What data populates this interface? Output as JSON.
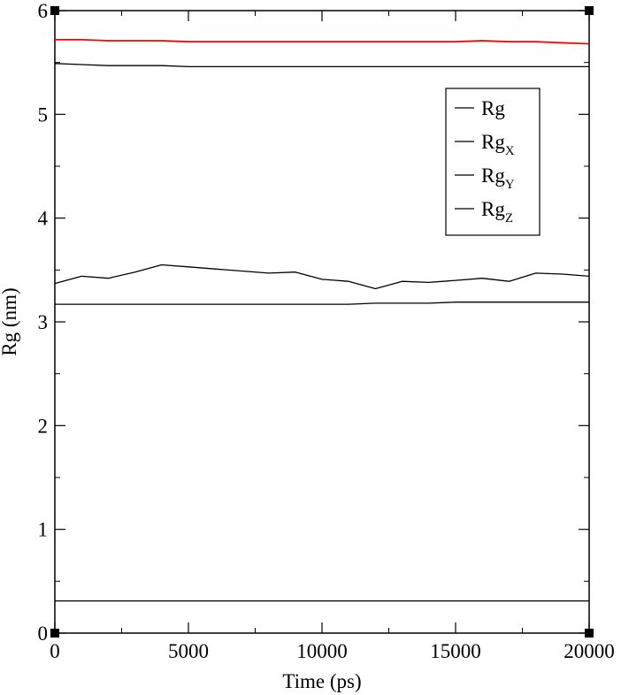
{
  "chart_data": {
    "type": "line",
    "title": "",
    "xlabel": "Time (ps)",
    "ylabel": "Rg (nm)",
    "xlim": [
      0,
      20000
    ],
    "ylim": [
      0,
      6
    ],
    "xticks": [
      0,
      5000,
      10000,
      15000,
      20000
    ],
    "xtick_labels": [
      "0",
      "5000",
      "10000",
      "15000",
      "20000"
    ],
    "yticks": [
      0,
      1,
      2,
      3,
      4,
      5,
      6
    ],
    "ytick_labels": [
      "0",
      "1",
      "2",
      "3",
      "4",
      "5",
      "6"
    ],
    "x_minor_step": 2500,
    "y_minor_step": 0.5,
    "grid": false,
    "legend_position": "top-right",
    "legend": [
      {
        "base": "Rg",
        "sub": ""
      },
      {
        "base": "Rg",
        "sub": "X"
      },
      {
        "base": "Rg",
        "sub": "Y"
      },
      {
        "base": "Rg",
        "sub": "Z"
      }
    ],
    "x": [
      0,
      1000,
      2000,
      3000,
      4000,
      5000,
      6000,
      7000,
      8000,
      9000,
      10000,
      11000,
      12000,
      13000,
      14000,
      15000,
      16000,
      17000,
      18000,
      19000,
      20000
    ],
    "series": [
      {
        "color": "#ff0000",
        "values": [
          5.72,
          5.72,
          5.71,
          5.71,
          5.71,
          5.7,
          5.7,
          5.7,
          5.7,
          5.7,
          5.7,
          5.7,
          5.7,
          5.7,
          5.7,
          5.7,
          5.71,
          5.7,
          5.7,
          5.69,
          5.68
        ]
      },
      {
        "color": "#000000",
        "values": [
          5.49,
          5.48,
          5.47,
          5.47,
          5.47,
          5.46,
          5.46,
          5.46,
          5.46,
          5.46,
          5.46,
          5.46,
          5.46,
          5.46,
          5.46,
          5.46,
          5.46,
          5.46,
          5.46,
          5.46,
          5.46
        ]
      },
      {
        "color": "#000000",
        "values": [
          3.37,
          3.44,
          3.42,
          3.48,
          3.55,
          3.53,
          3.51,
          3.49,
          3.47,
          3.48,
          3.41,
          3.39,
          3.32,
          3.39,
          3.38,
          3.4,
          3.42,
          3.39,
          3.47,
          3.46,
          3.44
        ]
      },
      {
        "color": "#000000",
        "values": [
          3.17,
          3.17,
          3.17,
          3.17,
          3.17,
          3.17,
          3.17,
          3.17,
          3.17,
          3.17,
          3.17,
          3.17,
          3.18,
          3.18,
          3.18,
          3.19,
          3.19,
          3.19,
          3.19,
          3.19,
          3.19
        ]
      },
      {
        "color": "#000000",
        "values": [
          0.31,
          0.31,
          0.31,
          0.31,
          0.31,
          0.31,
          0.31,
          0.31,
          0.31,
          0.31,
          0.31,
          0.31,
          0.31,
          0.31,
          0.31,
          0.31,
          0.31,
          0.31,
          0.31,
          0.31,
          0.31
        ]
      }
    ]
  }
}
